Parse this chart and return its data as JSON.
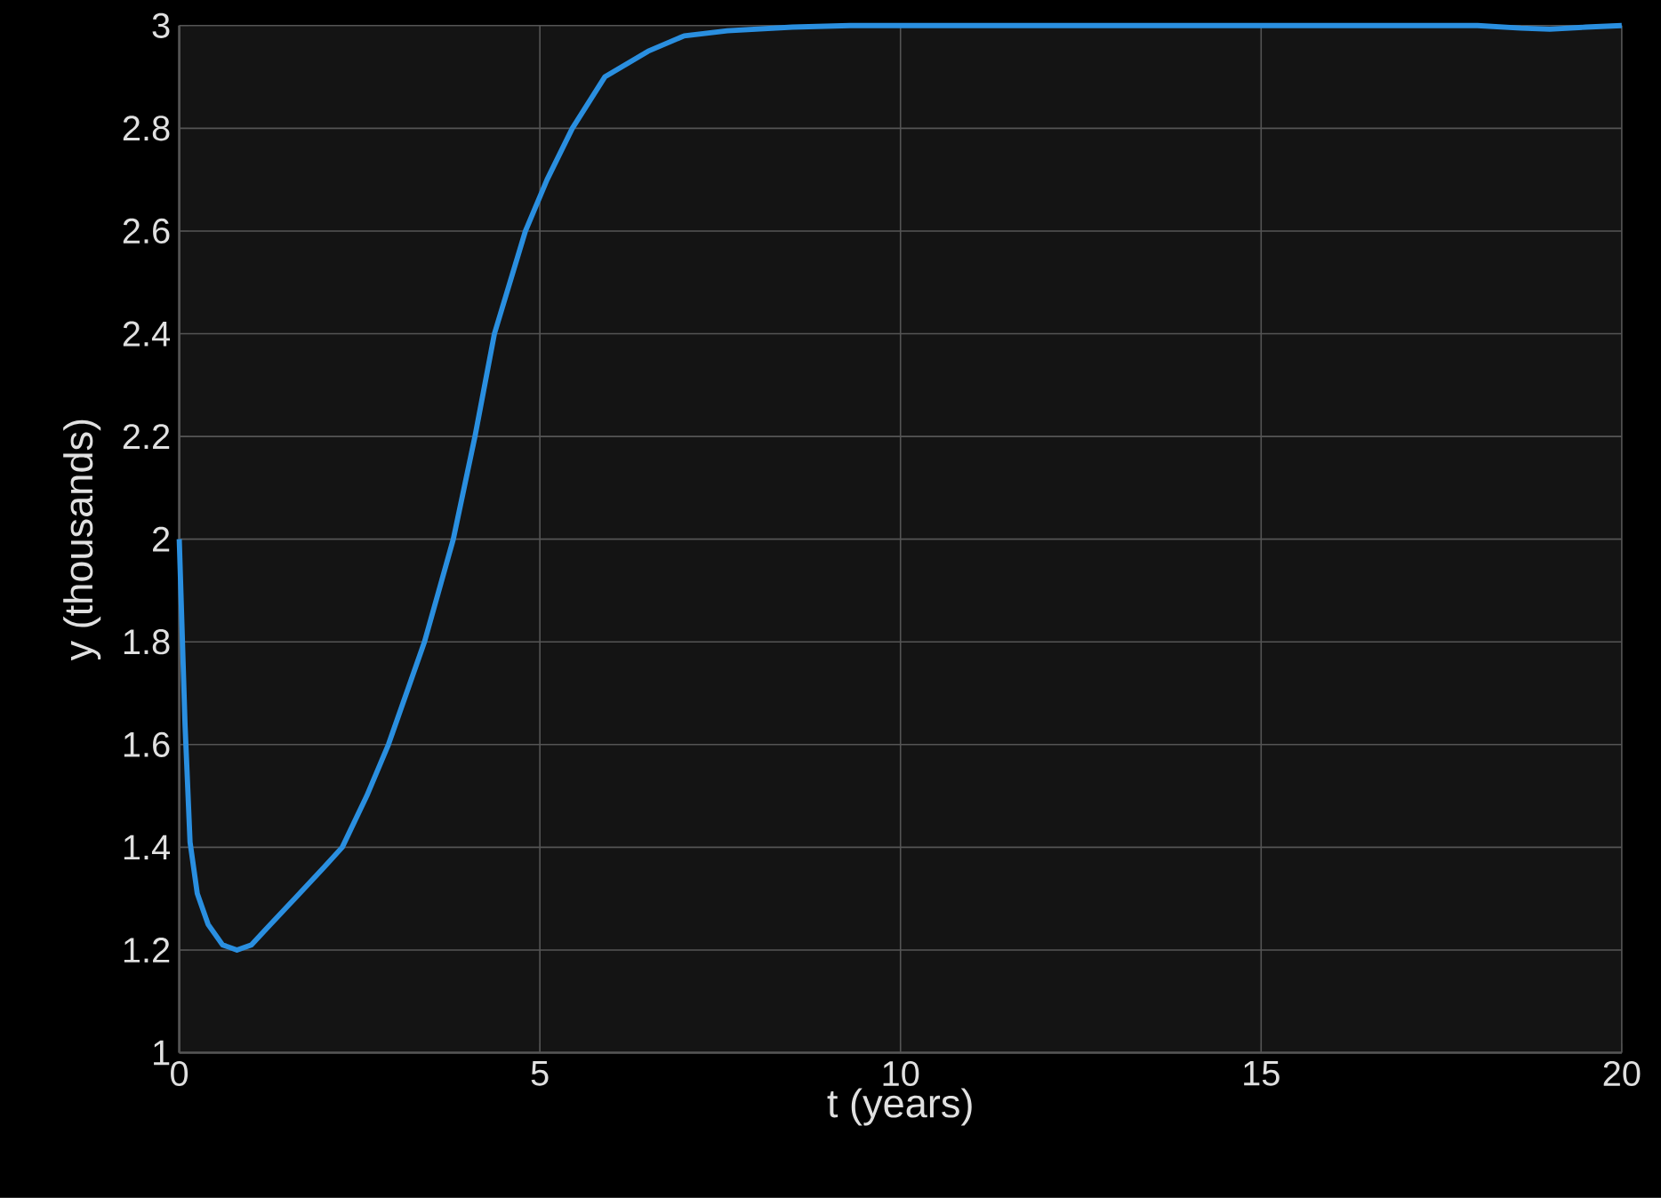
{
  "chart_data": {
    "type": "line",
    "xlabel": "t (years)",
    "ylabel": "y (thousands)",
    "xlim": [
      0,
      20
    ],
    "ylim": [
      1,
      3
    ],
    "xticks": [
      0,
      5,
      10,
      15,
      20
    ],
    "yticks": [
      1,
      1.2,
      1.4,
      1.6,
      1.8,
      2,
      2.2,
      2.4,
      2.6,
      2.8,
      3
    ],
    "grid": true,
    "marker": "none",
    "line_style": "solid",
    "series": [
      {
        "color": "#2a8fe0",
        "x": [
          0,
          0.04,
          0.08,
          0.15,
          0.25,
          0.4,
          0.6,
          0.8,
          1.0,
          1.2,
          1.6,
          2.0,
          2.26,
          2.6,
          2.9,
          3.2,
          3.4,
          3.6,
          3.8,
          4.1,
          4.37,
          4.8,
          5.1,
          5.45,
          5.9,
          6.5,
          7.0,
          7.6,
          8.5,
          9.3,
          12,
          15,
          18,
          18.6,
          19,
          19.5,
          20
        ],
        "values": [
          2.0,
          1.82,
          1.64,
          1.41,
          1.31,
          1.25,
          1.21,
          1.2,
          1.21,
          1.24,
          1.3,
          1.36,
          1.4,
          1.5,
          1.6,
          1.72,
          1.8,
          1.9,
          2.0,
          2.2,
          2.4,
          2.6,
          2.7,
          2.8,
          2.9,
          2.95,
          2.98,
          2.99,
          2.997,
          3.0,
          3.0,
          3.0,
          3.0,
          2.995,
          2.993,
          2.997,
          3.0
        ]
      }
    ]
  }
}
